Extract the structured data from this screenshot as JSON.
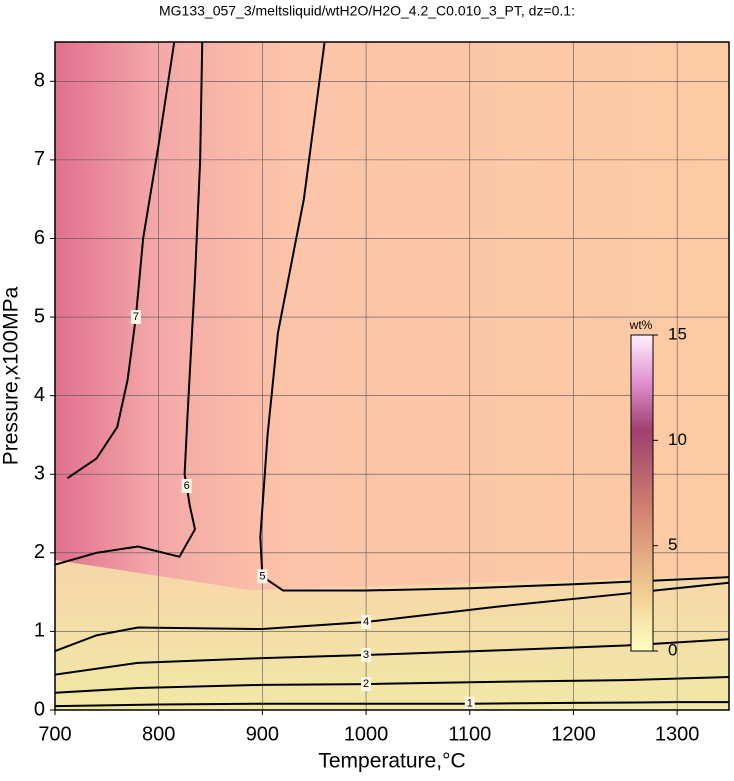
{
  "chart_data": {
    "type": "contour",
    "title": "MG133_057_3/meltsliquid/wtH2O/H2O_4.2_C0.010_3_PT, dz=0.1:",
    "x_label": "Temperature,°C",
    "y_label": "Pressure,x100MPa",
    "xlim": [
      700,
      1350
    ],
    "ylim": [
      0,
      8.5
    ],
    "xticks": [
      700,
      800,
      900,
      1000,
      1100,
      1200,
      1300
    ],
    "yticks": [
      0,
      1,
      2,
      3,
      4,
      5,
      6,
      7,
      8
    ],
    "grid": true,
    "contours": [
      {
        "level": 1,
        "color": "#000000",
        "x": [
          700,
          800,
          900,
          1000,
          1100,
          1200,
          1300,
          1350
        ],
        "y": [
          0.05,
          0.07,
          0.08,
          0.08,
          0.08,
          0.09,
          0.1,
          0.1
        ]
      },
      {
        "level": 2,
        "color": "#000000",
        "x": [
          700,
          780,
          900,
          1000,
          1130,
          1250,
          1350
        ],
        "y": [
          0.22,
          0.28,
          0.32,
          0.33,
          0.36,
          0.38,
          0.42
        ]
      },
      {
        "level": 3,
        "color": "#000000",
        "x": [
          700,
          780,
          900,
          1000,
          1130,
          1250,
          1350
        ],
        "y": [
          0.45,
          0.6,
          0.66,
          0.7,
          0.76,
          0.82,
          0.9
        ]
      },
      {
        "level": 4,
        "color": "#000000",
        "x": [
          700,
          740,
          780,
          900,
          1000,
          1130,
          1250,
          1350
        ],
        "y": [
          0.75,
          0.95,
          1.05,
          1.03,
          1.12,
          1.32,
          1.48,
          1.62
        ]
      },
      {
        "level": 5,
        "color": "#000000",
        "x": [
          1350,
          1200,
          1100,
          1000,
          920,
          900,
          898,
          905,
          915,
          940,
          960
        ],
        "y": [
          1.69,
          1.6,
          1.55,
          1.52,
          1.52,
          1.7,
          2.2,
          3.5,
          4.8,
          6.5,
          8.5
        ]
      },
      {
        "level": 6,
        "color": "#000000",
        "x": [
          700,
          740,
          780,
          820,
          835,
          830,
          827,
          825,
          828,
          835,
          840,
          842
        ],
        "y": [
          1.85,
          2.0,
          2.08,
          1.95,
          2.3,
          2.6,
          2.85,
          3.0,
          3.8,
          5.5,
          7.0,
          8.5
        ]
      },
      {
        "level": 7,
        "color": "#000000",
        "x": [
          712,
          740,
          760,
          770,
          778,
          785,
          800,
          815
        ],
        "y": [
          2.95,
          3.2,
          3.6,
          4.2,
          5.0,
          6.0,
          7.2,
          8.5
        ]
      }
    ],
    "colorbar": {
      "label": "wt%",
      "lim": [
        0,
        15
      ],
      "ticks": [
        0,
        5,
        10,
        15
      ]
    }
  }
}
